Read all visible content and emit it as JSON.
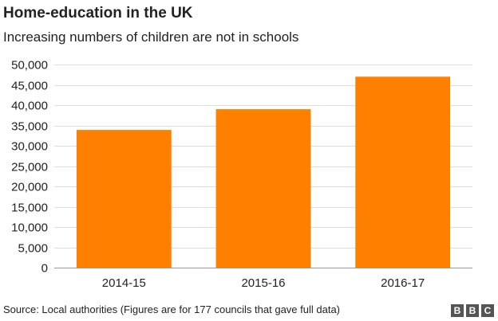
{
  "chart_data": {
    "type": "bar",
    "title": "Home-education in the UK",
    "subtitle": "Increasing numbers of children are not in schools",
    "categories": [
      "2014-15",
      "2015-16",
      "2016-17"
    ],
    "values": [
      33900,
      39000,
      47000
    ],
    "ylim": [
      0,
      50000
    ],
    "yticks": [
      "0",
      "5,000",
      "10,000",
      "15,000",
      "20,000",
      "25,000",
      "30,000",
      "35,000",
      "40,000",
      "45,000",
      "50,000"
    ],
    "grid": true,
    "bar_color": "#ff7f00",
    "grid_color": "#dddddd"
  },
  "footer": {
    "source": "Source: Local authorities (Figures are for 177 councils that gave full data)",
    "logo_letters": [
      "B",
      "B",
      "C"
    ]
  }
}
